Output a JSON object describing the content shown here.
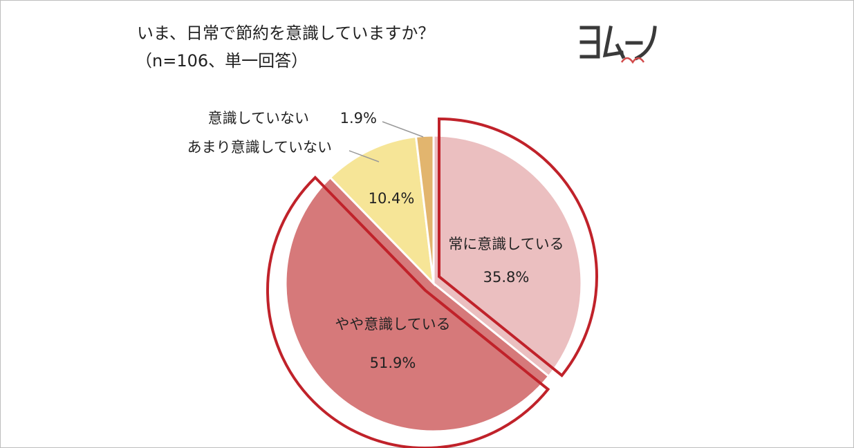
{
  "title": "いま、日常で節約を意識していますか？",
  "subtitle": "（n=106、単一回答）",
  "logo": {
    "text": "ヨムーノ",
    "icon": "yomuno-logo"
  },
  "colors": {
    "accent_outline": "#c0222a",
    "slice_1": "#ebbfc0",
    "slice_2": "#d6797a",
    "slice_3": "#f6e597",
    "slice_4": "#e2b56e"
  },
  "chart_data": {
    "type": "pie",
    "title": "いま、日常で節約を意識していますか？",
    "subtitle": "（n=106、単一回答）",
    "start_angle": "12 o'clock",
    "direction": "clockwise",
    "highlighted_slices": [
      "常に意識している",
      "やや意識している"
    ],
    "slices": [
      {
        "label": "常に意識している",
        "value": 35.8,
        "value_label": "35.8%"
      },
      {
        "label": "やや意識している",
        "value": 51.9,
        "value_label": "51.9%"
      },
      {
        "label": "あまり意識していない",
        "value": 10.4,
        "value_label": "10.4%"
      },
      {
        "label": "意識していない",
        "value": 1.9,
        "value_label": "1.9%"
      }
    ]
  }
}
